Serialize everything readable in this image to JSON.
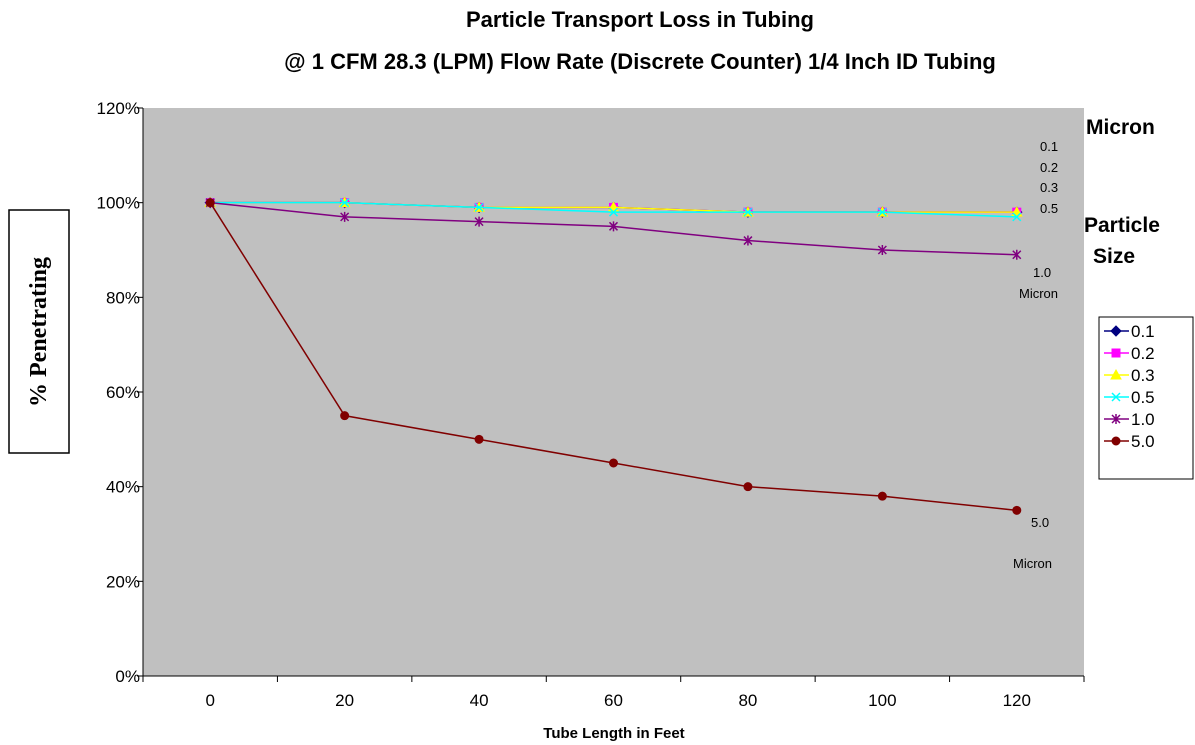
{
  "chart_data": {
    "type": "line",
    "title": "Particle Transport Loss in Tubing",
    "subtitle": "@ 1 CFM 28.3 (LPM) Flow Rate (Discrete Counter) 1/4 Inch ID Tubing",
    "xlabel": "Tube Length in Feet",
    "ylabel": "% Penetrating",
    "x": [
      0,
      20,
      40,
      60,
      80,
      100,
      120
    ],
    "ylim": [
      0,
      1.2
    ],
    "yticks": [
      "0%",
      "20%",
      "40%",
      "60%",
      "80%",
      "100%",
      "120%"
    ],
    "xticks": [
      "0",
      "20",
      "40",
      "60",
      "80",
      "100",
      "120"
    ],
    "grid": false,
    "legend_position": "right",
    "series": [
      {
        "name": "0.1",
        "color": "#000080",
        "marker": "diamond",
        "values": [
          1.0,
          1.0,
          0.99,
          0.99,
          0.98,
          0.98,
          0.98
        ]
      },
      {
        "name": "0.2",
        "color": "#ff00ff",
        "marker": "square",
        "values": [
          1.0,
          1.0,
          0.99,
          0.99,
          0.98,
          0.98,
          0.98
        ]
      },
      {
        "name": "0.3",
        "color": "#ffff00",
        "marker": "triangle",
        "values": [
          1.0,
          1.0,
          0.99,
          0.99,
          0.98,
          0.98,
          0.98
        ]
      },
      {
        "name": "0.5",
        "color": "#00ffff",
        "marker": "x",
        "values": [
          1.0,
          1.0,
          0.99,
          0.98,
          0.98,
          0.98,
          0.97
        ]
      },
      {
        "name": "1.0",
        "color": "#800080",
        "marker": "star",
        "values": [
          1.0,
          0.97,
          0.96,
          0.95,
          0.92,
          0.9,
          0.89
        ]
      },
      {
        "name": "5.0",
        "color": "#800000",
        "marker": "circle",
        "values": [
          1.0,
          0.55,
          0.5,
          0.45,
          0.4,
          0.38,
          0.35
        ]
      }
    ],
    "side_labels": {
      "micron": "Micron",
      "particle": "Particle",
      "size": "Size"
    },
    "annotations": {
      "small_sizes": [
        "0.1",
        "0.2",
        "0.3",
        "0.5"
      ],
      "one_value": "1.0",
      "one_unit": "Micron",
      "five_value": "5.0",
      "five_unit": "Micron"
    },
    "colors": {
      "plot_background": "#c0c0c0"
    }
  }
}
